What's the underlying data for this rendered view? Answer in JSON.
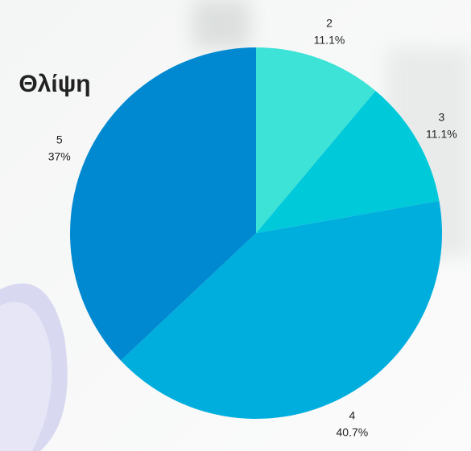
{
  "chart_data": {
    "type": "pie",
    "title": "Θλίψη",
    "categories": [
      "2",
      "3",
      "4",
      "5"
    ],
    "values": [
      11.1,
      11.1,
      40.7,
      37
    ],
    "value_labels": [
      "11.1%",
      "11.1%",
      "40.7%",
      "37%"
    ],
    "colors": [
      "#3ce3d6",
      "#00c9da",
      "#00aede",
      "#0089d1"
    ]
  }
}
